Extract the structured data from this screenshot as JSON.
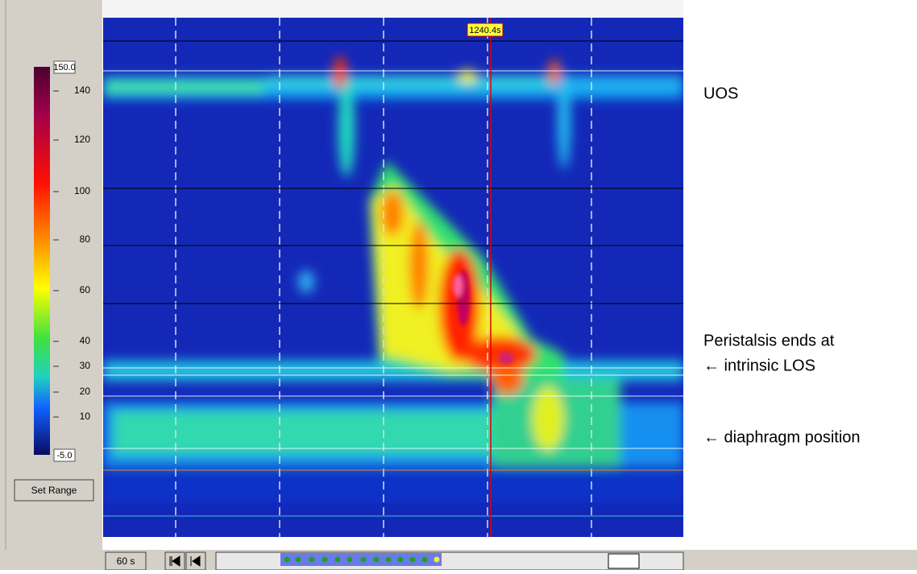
{
  "colorbar": {
    "max": "150.0",
    "min": "-5.0",
    "ticks": [
      140,
      120,
      100,
      80,
      60,
      40,
      30,
      20,
      10
    ]
  },
  "buttons": {
    "set_range": "Set Range",
    "window": "60 s"
  },
  "cursor": {
    "time": "1240.4s"
  },
  "annotations": [
    "UOS",
    "Peristalsis ends at",
    "← intrinsic LOS",
    "← diaphragm position"
  ]
}
